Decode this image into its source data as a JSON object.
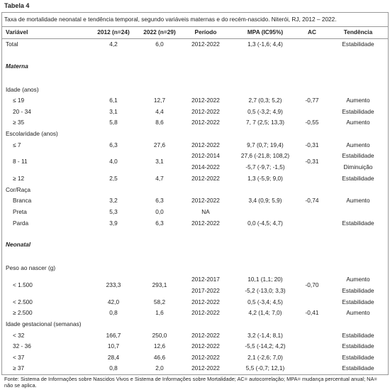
{
  "header": {
    "label": "Tabela 4",
    "caption": "Taxa de mortalidade neonatal e tendência temporal, segundo variáveis maternas e do recém-nascido. Niterói, RJ, 2012 – 2022."
  },
  "table": {
    "columns": [
      "Variável",
      "2012 (n=24)",
      "2022 (n=29)",
      "Período",
      "MPA (IC95%)",
      "AC",
      "Tendência"
    ],
    "rows": [
      {
        "cells": [
          "Total",
          "4,2",
          "6,0",
          "2012-2022",
          "1,3 (-1,6; 4,4)",
          null,
          "Estabilidade"
        ]
      },
      {
        "section": "Materna"
      },
      {
        "group": "Idade (anos)"
      },
      {
        "cells": [
          "≤ 19",
          "6,1",
          "12,7",
          "2012-2022",
          "2,7 (0,3; 5,2)",
          "-0,77",
          "Aumento"
        ]
      },
      {
        "cells": [
          "20 - 34",
          "3,1",
          "4,4",
          "2012-2022",
          "0,5 (-3,2; 4,9)",
          null,
          "Estabilidade"
        ]
      },
      {
        "cells": [
          "≥ 35",
          "5,8",
          "8,6",
          "2012-2022",
          "7, 7 (2,5; 13,3)",
          "-0,55",
          "Aumento"
        ]
      },
      {
        "group": "Escolaridade (anos)"
      },
      {
        "cells": [
          "≤ 7",
          "6,3",
          "27,6",
          "2012-2022",
          "9,7 (0,7; 19,4)",
          "-0,31",
          "Aumento"
        ]
      },
      {
        "cells": [
          "8 - 11",
          "4,0",
          "3,1",
          [
            "2012-2014",
            "2014-2022"
          ],
          [
            "27,6 (-21,8; 108,2)",
            "-5,7 (-9,7; -1,5)"
          ],
          "-0,31",
          [
            "Estabilidade",
            "Diminuição"
          ]
        ]
      },
      {
        "cells": [
          "≥ 12",
          "2,5",
          "4,7",
          "2012-2022",
          "1,3 (-5,9; 9,0)",
          null,
          "Estabilidade"
        ]
      },
      {
        "group": "Cor/Raça"
      },
      {
        "cells": [
          "Branca",
          "3,2",
          "6,3",
          "2012-2022",
          "3,4 (0,9; 5,9)",
          "-0,74",
          "Aumento"
        ]
      },
      {
        "cells": [
          "Preta",
          "5,3",
          "0,0",
          "NA",
          null,
          null,
          null
        ]
      },
      {
        "cells": [
          "Parda",
          "3,9",
          "6,3",
          "2012-2022",
          "0,0 (-4,5; 4,7)",
          null,
          "Estabilidade"
        ]
      },
      {
        "section": "Neonatal"
      },
      {
        "group": "Peso ao nascer (g)"
      },
      {
        "cells": [
          "< 1.500",
          "233,3",
          "293,1",
          [
            "2012-2017",
            "2017-2022"
          ],
          [
            "10,1 (1,1; 20)",
            "-5,2 (-13,0; 3,3)"
          ],
          "-0,70",
          [
            "Aumento",
            "Estabilidade"
          ]
        ]
      },
      {
        "cells": [
          "< 2.500",
          "42,0",
          "58,2",
          "2012-2022",
          "0,5 (-3,4; 4,5)",
          null,
          "Estabilidade"
        ]
      },
      {
        "cells": [
          "≥ 2.500",
          "0,8",
          "1,6",
          "2012-2022",
          "4,2 (1,4; 7,0)",
          "-0,41",
          "Aumento"
        ]
      },
      {
        "group": "Idade gestacional (semanas)"
      },
      {
        "cells": [
          "< 32",
          "166,7",
          "250,0",
          "2012-2022",
          "3,2 (-1,4; 8,1)",
          null,
          "Estabilidade"
        ]
      },
      {
        "cells": [
          "32 - 36",
          "10,7",
          "12,6",
          "2012-2022",
          "-5,5 (-14,2; 4,2)",
          null,
          "Estabilidade"
        ]
      },
      {
        "cells": [
          "< 37",
          "28,4",
          "46,6",
          "2012-2022",
          "2,1 (-2,6; 7,0)",
          null,
          "Estabilidade"
        ]
      },
      {
        "cells": [
          "≥ 37",
          "0,8",
          "2,0",
          "2012-2022",
          "5,5 (-0,7; 12,1)",
          null,
          "Estabilidade"
        ]
      }
    ]
  },
  "footer": "Fonte: Sistema de Informações sobre Nascidos Vivos e Sistema de Informações sobre Mortalidade; AC= autocorrelação; MPA= mudança percentual anual; NA= não se aplica."
}
